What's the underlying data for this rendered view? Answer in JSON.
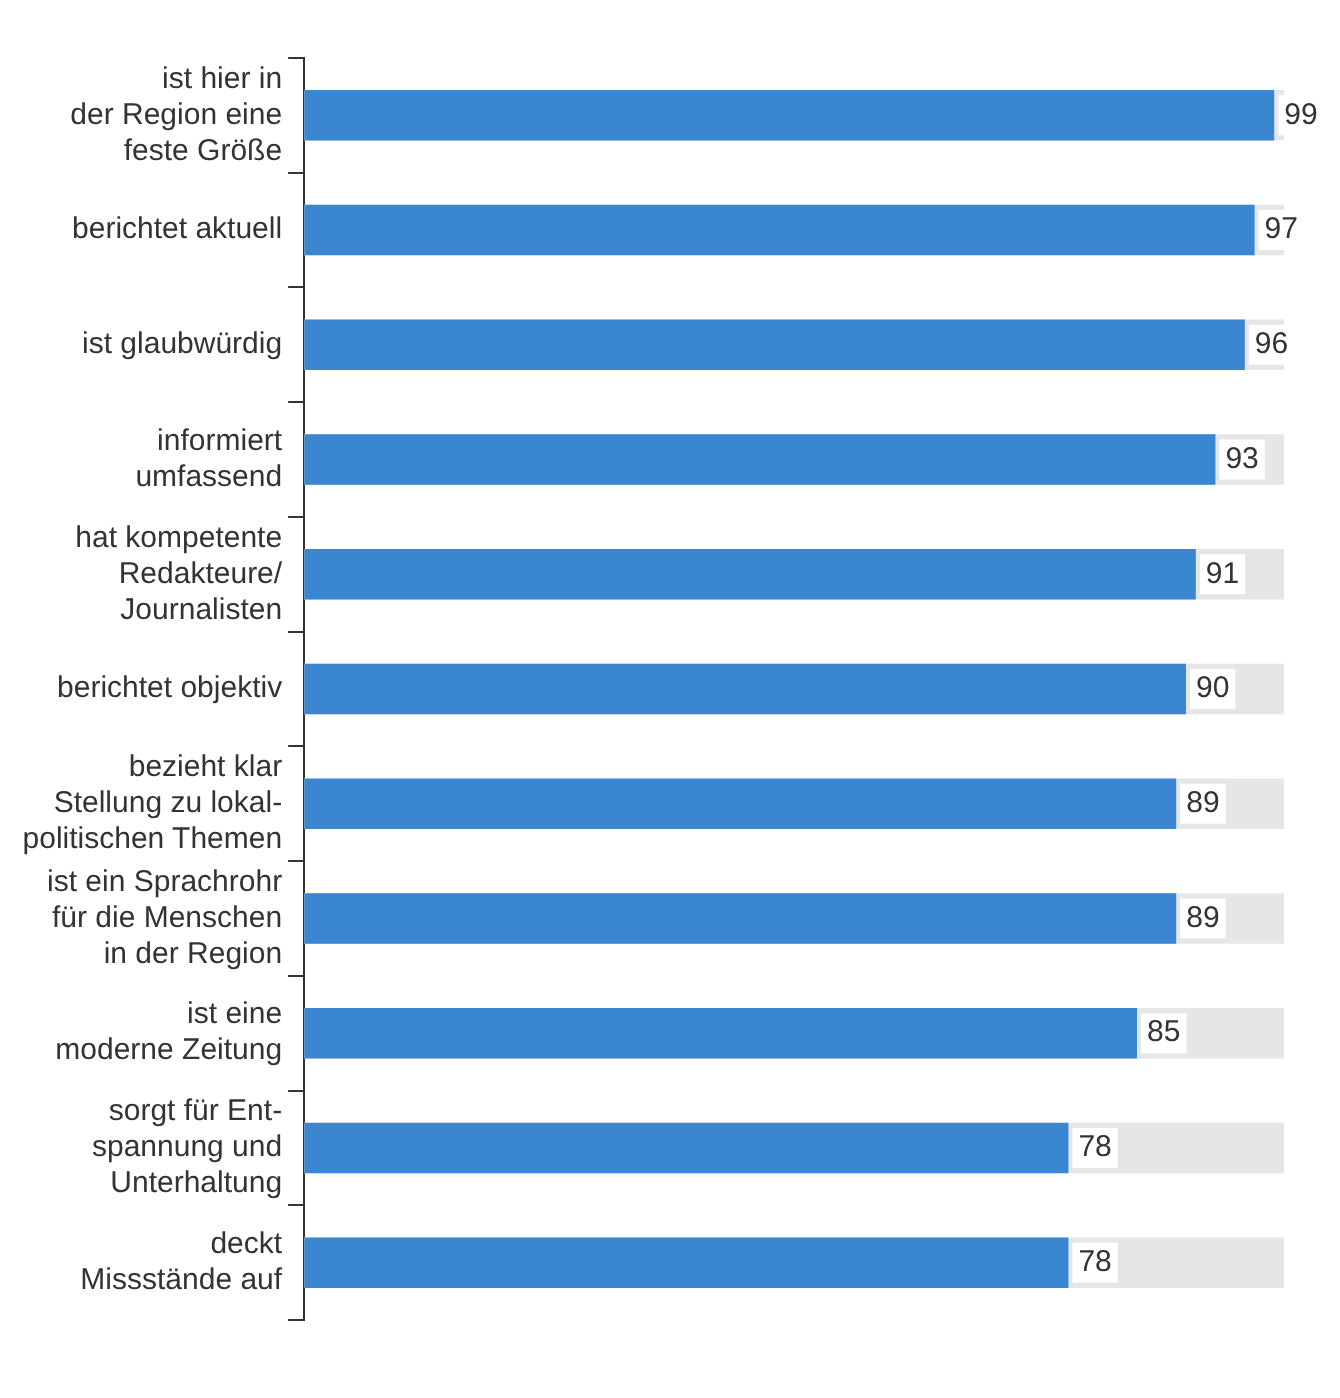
{
  "chart_data": {
    "type": "bar",
    "orientation": "horizontal",
    "categories": [
      "ist hier in\nder Region eine\nfeste Größe",
      "berichtet aktuell",
      "ist glaubwürdig",
      "informiert\numfassend",
      "hat kompetente\nRedakteure/\nJournalisten",
      "berichtet objektiv",
      "bezieht klar\nStellung zu lokal-\npolitischen Themen",
      "ist ein Sprachrohr\nfür die Menschen\nin der Region",
      "ist eine\nmoderne Zeitung",
      "sorgt für Ent-\nspannung und\nUnterhaltung",
      "deckt\nMissstände auf"
    ],
    "values": [
      99,
      97,
      96,
      93,
      91,
      90,
      89,
      89,
      85,
      78,
      78
    ],
    "color": "#3a86d1",
    "xlim": [
      0,
      100
    ],
    "tick_labels": "y",
    "data_labels": true,
    "legend": false,
    "grid": false
  }
}
